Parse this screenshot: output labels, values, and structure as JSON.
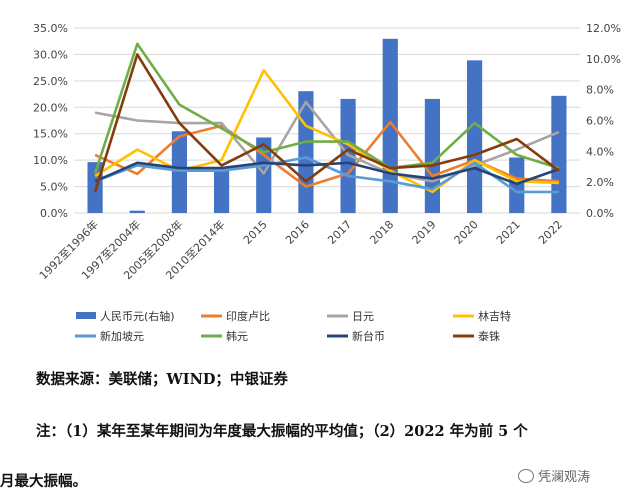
{
  "chart_data": {
    "type": "bar+line",
    "categories": [
      "1992至1996年",
      "1997至2004年",
      "2005至2008年",
      "2010至2014年",
      "2015",
      "2016",
      "2017",
      "2018",
      "2019",
      "2020",
      "2021",
      "2022"
    ],
    "y_left": {
      "ticks": [
        "0.0%",
        "5.0%",
        "10.0%",
        "15.0%",
        "20.0%",
        "25.0%",
        "30.0%",
        "35.0%"
      ],
      "min": 0,
      "max": 35
    },
    "y_right": {
      "ticks": [
        "0.0%",
        "2.0%",
        "4.0%",
        "6.0%",
        "8.0%",
        "10.0%",
        "12.0%"
      ],
      "min": 0,
      "max": 12
    },
    "bar_series": {
      "name": "人民币元(右轴)",
      "axis": "right",
      "color": "#4472C4",
      "values": [
        3.3,
        0.15,
        5.3,
        2.8,
        4.9,
        7.9,
        7.4,
        11.3,
        7.4,
        9.9,
        3.6,
        7.6
      ]
    },
    "line_series": [
      {
        "name": "印度卢比",
        "color": "#ED7D31",
        "values": [
          11.0,
          7.4,
          14.5,
          16.5,
          11.0,
          5.0,
          7.5,
          17.2,
          7.0,
          10.0,
          6.5,
          6.0
        ]
      },
      {
        "name": "日元",
        "color": "#A5A5A5",
        "values": [
          19.0,
          17.5,
          17.0,
          17.0,
          7.5,
          21.0,
          11.0,
          7.5,
          6.0,
          9.0,
          12.0,
          15.3
        ]
      },
      {
        "name": "林吉特",
        "color": "#FFC000",
        "values": [
          7.0,
          12.0,
          8.0,
          10.0,
          27.0,
          16.5,
          13.0,
          8.0,
          4.0,
          10.0,
          6.0,
          5.7
        ]
      },
      {
        "name": "新加坡元",
        "color": "#5B9BD5",
        "values": [
          6.0,
          9.0,
          8.0,
          8.0,
          9.0,
          10.5,
          7.0,
          6.0,
          4.5,
          9.5,
          4.0,
          4.0
        ]
      },
      {
        "name": "韩元",
        "color": "#70AD47",
        "values": [
          7.5,
          32.0,
          20.5,
          16.0,
          11.5,
          13.5,
          13.5,
          8.5,
          9.5,
          17.0,
          11.0,
          8.5
        ]
      },
      {
        "name": "新台币",
        "color": "#264478",
        "values": [
          6.0,
          9.5,
          8.5,
          8.5,
          9.5,
          9.0,
          9.5,
          7.5,
          6.5,
          8.5,
          5.5,
          8.3
        ]
      },
      {
        "name": "泰铢",
        "color": "#843C0C",
        "values": [
          4.0,
          30.0,
          17.0,
          9.0,
          13.0,
          6.0,
          12.0,
          8.5,
          9.0,
          11.0,
          14.0,
          8.0
        ]
      }
    ]
  },
  "source_text": "数据来源：美联储；WIND；中银证券",
  "note_line1": "注：（1）某年至某年期间为年度最大振幅的平均值；（2）2022 年为前 5 个",
  "note_line2": "月最大振幅。",
  "watermark": "凭澜观涛"
}
